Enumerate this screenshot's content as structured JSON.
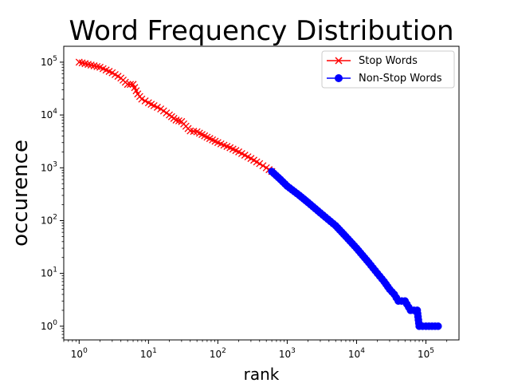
{
  "chart_data": {
    "type": "line",
    "title": "Word Frequency Distribution",
    "xlabel": "rank",
    "ylabel": "occurence",
    "xscale": "log",
    "yscale": "log",
    "xlim": [
      0.6,
      300000
    ],
    "ylim": [
      0.55,
      200000
    ],
    "x_ticks": [
      {
        "base": "10",
        "exp": "0"
      },
      {
        "base": "10",
        "exp": "1"
      },
      {
        "base": "10",
        "exp": "2"
      },
      {
        "base": "10",
        "exp": "3"
      },
      {
        "base": "10",
        "exp": "4"
      },
      {
        "base": "10",
        "exp": "5"
      }
    ],
    "y_ticks": [
      {
        "base": "10",
        "exp": "0"
      },
      {
        "base": "10",
        "exp": "1"
      },
      {
        "base": "10",
        "exp": "2"
      },
      {
        "base": "10",
        "exp": "3"
      },
      {
        "base": "10",
        "exp": "4"
      },
      {
        "base": "10",
        "exp": "5"
      }
    ],
    "grid": false,
    "legend_position": "top-right",
    "series": [
      {
        "name": "Stop Words",
        "color": "#ff0000",
        "marker": "x",
        "x": [
          1,
          2,
          3,
          4,
          5,
          6,
          7,
          8,
          10,
          12,
          15,
          20,
          25,
          30,
          40,
          50,
          70,
          100,
          150,
          200,
          300,
          400,
          500,
          600
        ],
        "y": [
          100000,
          80000,
          63000,
          50000,
          38000,
          38000,
          25000,
          20000,
          17000,
          15000,
          13000,
          10000,
          8000,
          7500,
          5000,
          4800,
          3800,
          3000,
          2400,
          2000,
          1500,
          1200,
          1000,
          850
        ]
      },
      {
        "name": "Non-Stop Words",
        "color": "#0000ff",
        "marker": "o",
        "x": [
          600,
          800,
          1000,
          1500,
          2000,
          3000,
          5000,
          7000,
          10000,
          15000,
          20000,
          25000,
          30000,
          35000,
          40000,
          50000,
          60000,
          75000,
          80000,
          100000,
          150000
        ],
        "y": [
          850,
          600,
          450,
          300,
          220,
          140,
          80,
          50,
          30,
          16,
          10,
          7,
          5,
          4,
          3,
          3,
          2,
          2,
          1,
          1,
          1
        ]
      }
    ]
  }
}
